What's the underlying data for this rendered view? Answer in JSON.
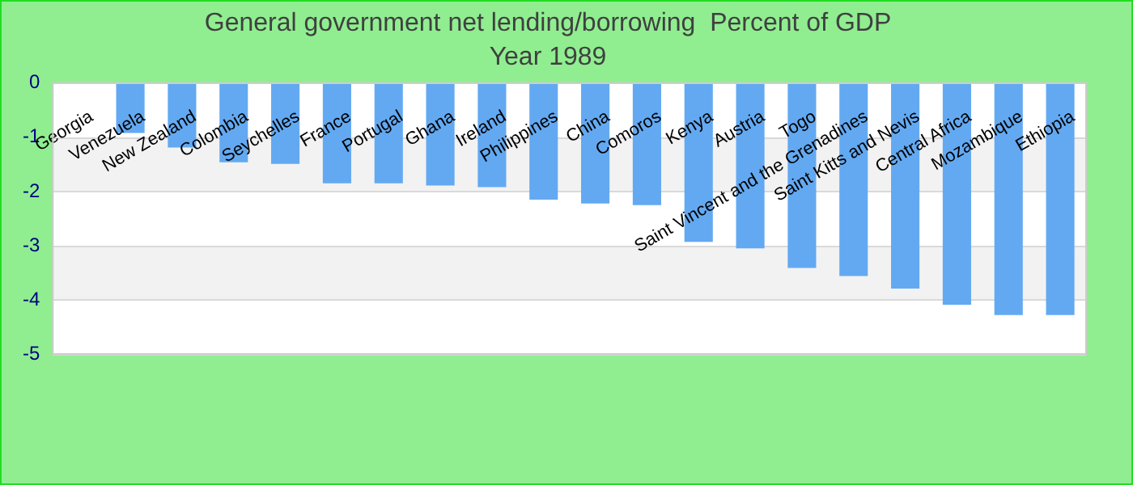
{
  "chart_data": {
    "type": "bar",
    "title": "General government net lending/borrowing  Percent of GDP",
    "subtitle": "Year 1989",
    "categories": [
      "Georgia",
      "Venezuela",
      "New Zealand",
      "Colombia",
      "Seychelles",
      "France",
      "Portugal",
      "Ghana",
      "Ireland",
      "Philippines",
      "China",
      "Comoros",
      "Kenya",
      "Austria",
      "Togo",
      "Saint Vincent and the Grenadines",
      "Saint Kitts and Nevis",
      "Central Africa",
      "Mozambique",
      "Ethiopia"
    ],
    "values": [
      0,
      -0.92,
      -1.19,
      -1.46,
      -1.49,
      -1.85,
      -1.85,
      -1.89,
      -1.92,
      -2.15,
      -2.22,
      -2.25,
      -2.93,
      -3.05,
      -3.41,
      -3.56,
      -3.79,
      -4.09,
      -4.28,
      -4.28
    ],
    "color": "#63a9f2",
    "ylim": [
      -5,
      0
    ],
    "yticks": [
      -5,
      -4,
      -3,
      -2,
      -1,
      0
    ],
    "grid": true
  }
}
